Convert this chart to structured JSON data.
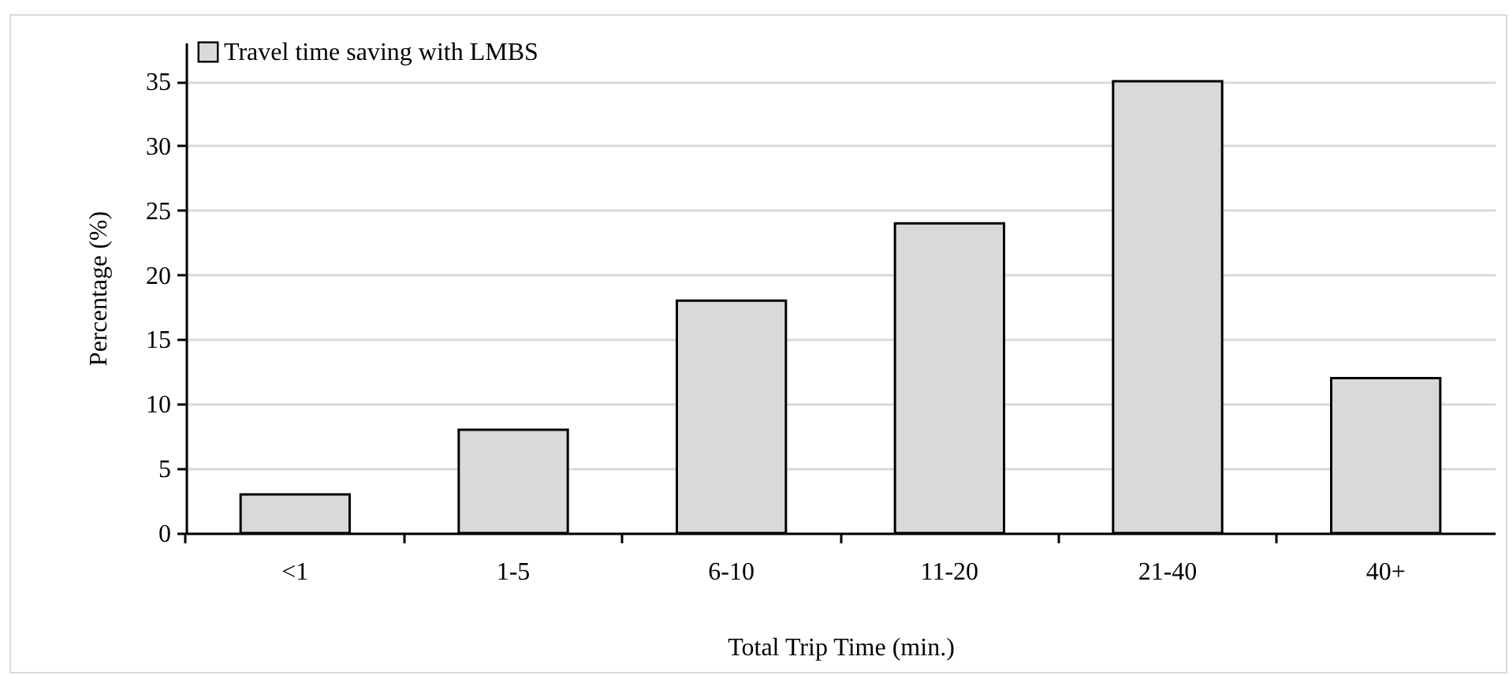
{
  "chart_data": {
    "type": "bar",
    "xlabel": "Total Trip Time (min.)",
    "ylabel": "Percentage (%)",
    "categories": [
      "<1",
      "1-5",
      "6-10",
      "11-20",
      "21-40",
      "40+"
    ],
    "series": [
      {
        "name": "Travel time saving with LMBS",
        "color": "#d9d9d9",
        "values": [
          3,
          8,
          18,
          24,
          35,
          12
        ]
      }
    ],
    "ylim": [
      0,
      38
    ],
    "yticks": [
      0,
      5,
      10,
      15,
      20,
      25,
      30,
      35
    ],
    "grid": "y",
    "legend": "top left"
  }
}
